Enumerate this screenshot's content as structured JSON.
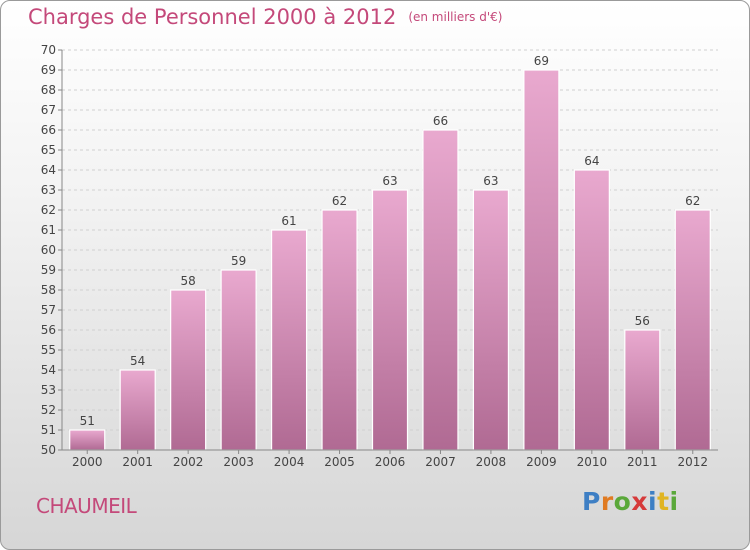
{
  "header": {
    "title": "Charges de Personnel 2000 à 2012",
    "subtitle": "(en milliers d'€)"
  },
  "footer": {
    "town": "CHAUMEIL",
    "logo": {
      "text": "Proxiti"
    }
  },
  "colors": {
    "accent": "#c4497a",
    "bar_top": "#e9a9cf",
    "bar_bottom": "#b06a93"
  },
  "chart_data": {
    "type": "bar",
    "title": "Charges de Personnel 2000 à 2012",
    "subtitle": "(en milliers d'€)",
    "categories": [
      "2000",
      "2001",
      "2002",
      "2003",
      "2004",
      "2005",
      "2006",
      "2007",
      "2008",
      "2009",
      "2010",
      "2011",
      "2012"
    ],
    "values": [
      51,
      54,
      58,
      59,
      61,
      62,
      63,
      66,
      63,
      69,
      64,
      56,
      62
    ],
    "ylim": [
      50,
      70
    ],
    "yticks": [
      50,
      51,
      52,
      53,
      54,
      55,
      56,
      57,
      58,
      59,
      60,
      61,
      62,
      63,
      64,
      65,
      66,
      67,
      68,
      69,
      70
    ],
    "grid": true,
    "data_labels": true
  }
}
